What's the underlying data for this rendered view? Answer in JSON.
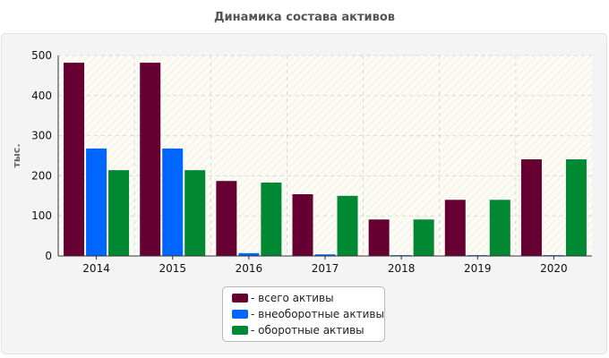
{
  "chart_data": {
    "type": "bar",
    "title": "Динамика состава активов",
    "ylabel": "тыс.",
    "xlabel": "",
    "ylim": [
      0,
      500
    ],
    "yticks": [
      0,
      100,
      200,
      300,
      400,
      500
    ],
    "grid": true,
    "legend_position": "bottom",
    "categories": [
      "2014",
      "2015",
      "2016",
      "2017",
      "2018",
      "2019",
      "2020"
    ],
    "series": [
      {
        "name": "- всего активы",
        "color": "#660033",
        "values": [
          482,
          482,
          187,
          154,
          91,
          140,
          241
        ]
      },
      {
        "name": "- внеоборотные активы",
        "color": "#0066ff",
        "values": [
          268,
          268,
          7,
          4,
          2,
          2,
          2
        ]
      },
      {
        "name": "- оборотные активы",
        "color": "#008833",
        "values": [
          214,
          214,
          183,
          150,
          91,
          140,
          241
        ]
      }
    ]
  }
}
